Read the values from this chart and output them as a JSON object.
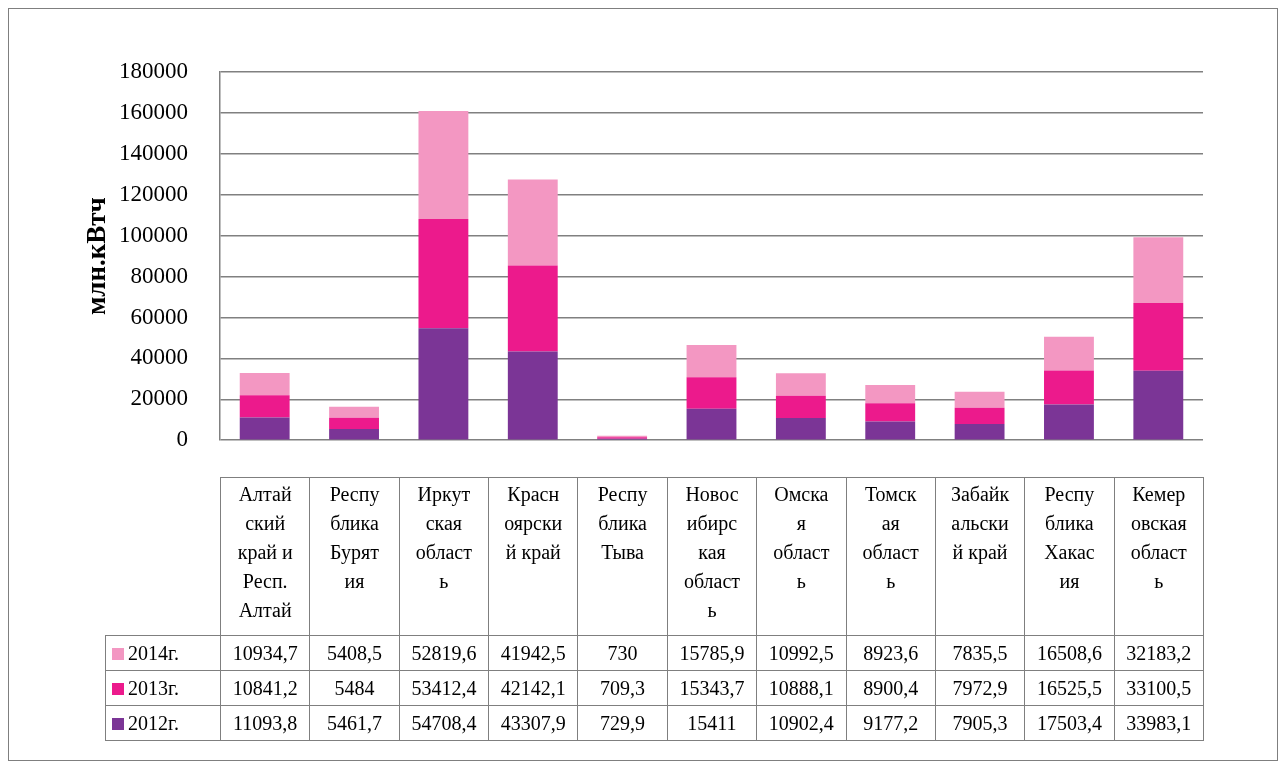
{
  "chart_data": {
    "type": "bar",
    "stacked": true,
    "ylabel": "млн.кВтч",
    "categories": [
      "Алтайский край и Респ. Алтай",
      "Республика Бурятия",
      "Иркутская область",
      "Красноярский край",
      "Республика Тыва",
      "Новосибирская область",
      "Омская область",
      "Томская область",
      "Забайкальский край",
      "Республика Хакасия",
      "Кемеровская область"
    ],
    "series": [
      {
        "name": "2012г.",
        "color": "#7b3596",
        "values": [
          11093.8,
          5461.7,
          54708.4,
          43307.9,
          729.9,
          15411,
          10902.4,
          9177.2,
          7905.3,
          17503.4,
          33983.1
        ],
        "value_labels": [
          "11093,8",
          "5461,7",
          "54708,4",
          "43307,9",
          "729,9",
          "15411",
          "10902,4",
          "9177,2",
          "7905,3",
          "17503,4",
          "33983,1"
        ]
      },
      {
        "name": "2013г.",
        "color": "#ec1a8c",
        "values": [
          10841.2,
          5484,
          53412.4,
          42142.1,
          709.3,
          15343.7,
          10888.1,
          8900.4,
          7972.9,
          16525.5,
          33100.5
        ],
        "value_labels": [
          "10841,2",
          "5484",
          "53412,4",
          "42142,1",
          "709,3",
          "15343,7",
          "10888,1",
          "8900,4",
          "7972,9",
          "16525,5",
          "33100,5"
        ]
      },
      {
        "name": "2014г.",
        "color": "#f397c2",
        "values": [
          10934.7,
          5408.5,
          52819.6,
          41942.5,
          730,
          15785.9,
          10992.5,
          8923.6,
          7835.5,
          16508.6,
          32183.2
        ],
        "value_labels": [
          "10934,7",
          "5408,5",
          "52819,6",
          "41942,5",
          "730",
          "15785,9",
          "10992,5",
          "8923,6",
          "7835,5",
          "16508,6",
          "32183,2"
        ]
      }
    ],
    "ylim": [
      0,
      180000
    ],
    "yticks": [
      0,
      20000,
      40000,
      60000,
      80000,
      100000,
      120000,
      140000,
      160000,
      180000
    ],
    "grid": "y",
    "legend": "bottom"
  }
}
